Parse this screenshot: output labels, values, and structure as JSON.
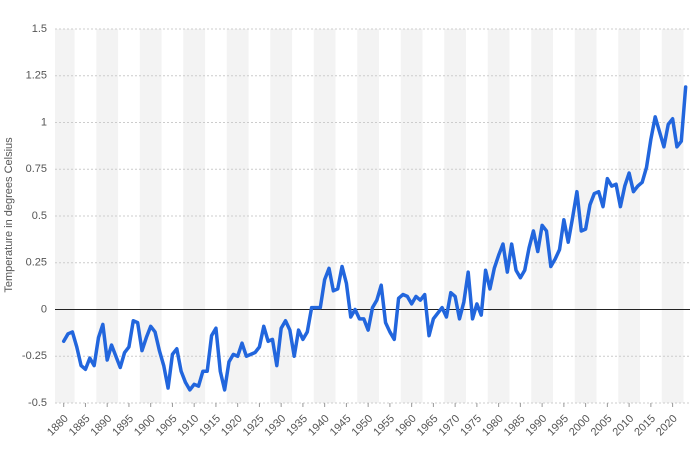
{
  "chart_data": {
    "type": "line",
    "y_axis_label": "Temperature in degrees Celsius",
    "x": [
      1880,
      1881,
      1882,
      1883,
      1884,
      1885,
      1886,
      1887,
      1888,
      1889,
      1890,
      1891,
      1892,
      1893,
      1894,
      1895,
      1896,
      1897,
      1898,
      1899,
      1900,
      1901,
      1902,
      1903,
      1904,
      1905,
      1906,
      1907,
      1908,
      1909,
      1910,
      1911,
      1912,
      1913,
      1914,
      1915,
      1916,
      1917,
      1918,
      1919,
      1920,
      1921,
      1922,
      1923,
      1924,
      1925,
      1926,
      1927,
      1928,
      1929,
      1930,
      1931,
      1932,
      1933,
      1934,
      1935,
      1936,
      1937,
      1938,
      1939,
      1940,
      1941,
      1942,
      1943,
      1944,
      1945,
      1946,
      1947,
      1948,
      1949,
      1950,
      1951,
      1952,
      1953,
      1954,
      1955,
      1956,
      1957,
      1958,
      1959,
      1960,
      1961,
      1962,
      1963,
      1964,
      1965,
      1966,
      1967,
      1968,
      1969,
      1970,
      1971,
      1972,
      1973,
      1974,
      1975,
      1976,
      1977,
      1978,
      1979,
      1980,
      1981,
      1982,
      1983,
      1984,
      1985,
      1986,
      1987,
      1988,
      1989,
      1990,
      1991,
      1992,
      1993,
      1994,
      1995,
      1996,
      1997,
      1998,
      1999,
      2000,
      2001,
      2002,
      2003,
      2004,
      2005,
      2006,
      2007,
      2008,
      2009,
      2010,
      2011,
      2012,
      2013,
      2014,
      2015,
      2016,
      2017,
      2018,
      2019,
      2020,
      2021,
      2022,
      2023
    ],
    "series": [
      {
        "color": "#2266dd",
        "values": [
          -0.17,
          -0.13,
          -0.12,
          -0.2,
          -0.3,
          -0.32,
          -0.26,
          -0.3,
          -0.15,
          -0.08,
          -0.27,
          -0.19,
          -0.25,
          -0.31,
          -0.23,
          -0.2,
          -0.06,
          -0.07,
          -0.22,
          -0.15,
          -0.09,
          -0.12,
          -0.22,
          -0.3,
          -0.42,
          -0.24,
          -0.21,
          -0.33,
          -0.39,
          -0.43,
          -0.4,
          -0.41,
          -0.33,
          -0.33,
          -0.14,
          -0.1,
          -0.33,
          -0.43,
          -0.28,
          -0.24,
          -0.25,
          -0.18,
          -0.25,
          -0.24,
          -0.23,
          -0.2,
          -0.09,
          -0.17,
          -0.16,
          -0.3,
          -0.1,
          -0.06,
          -0.11,
          -0.25,
          -0.11,
          -0.16,
          -0.12,
          0.01,
          0.01,
          0.01,
          0.16,
          0.22,
          0.1,
          0.11,
          0.23,
          0.14,
          -0.04,
          0.0,
          -0.05,
          -0.05,
          -0.11,
          0.01,
          0.05,
          0.13,
          -0.07,
          -0.12,
          -0.16,
          0.06,
          0.08,
          0.07,
          0.03,
          0.07,
          0.05,
          0.08,
          -0.14,
          -0.05,
          -0.02,
          0.01,
          -0.04,
          0.09,
          0.07,
          -0.05,
          0.04,
          0.2,
          -0.05,
          0.03,
          -0.03,
          0.21,
          0.11,
          0.22,
          0.29,
          0.35,
          0.2,
          0.35,
          0.21,
          0.17,
          0.21,
          0.33,
          0.42,
          0.31,
          0.45,
          0.42,
          0.23,
          0.27,
          0.32,
          0.48,
          0.36,
          0.49,
          0.63,
          0.42,
          0.43,
          0.56,
          0.62,
          0.63,
          0.55,
          0.7,
          0.66,
          0.67,
          0.55,
          0.66,
          0.73,
          0.63,
          0.66,
          0.68,
          0.76,
          0.91,
          1.03,
          0.95,
          0.87,
          0.99,
          1.02,
          0.87,
          0.9,
          1.19
        ]
      }
    ],
    "xlim": [
      1878,
      2024
    ],
    "xticks": [
      1880,
      1885,
      1890,
      1895,
      1900,
      1905,
      1910,
      1915,
      1920,
      1925,
      1930,
      1935,
      1940,
      1945,
      1950,
      1955,
      1960,
      1965,
      1970,
      1975,
      1980,
      1985,
      1990,
      1995,
      2000,
      2005,
      2010,
      2015,
      2020
    ],
    "ylim": [
      -0.5,
      1.5
    ],
    "yticks": [
      -0.5,
      -0.25,
      0,
      0.25,
      0.5,
      0.75,
      1,
      1.25,
      1.5
    ],
    "grid": true
  }
}
